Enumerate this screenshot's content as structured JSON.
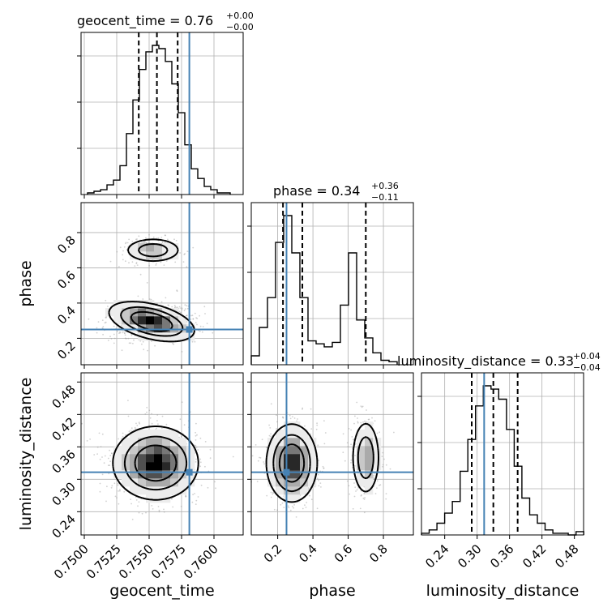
{
  "chart_data": {
    "type": "corner",
    "parameters": [
      "geocent_time",
      "phase",
      "luminosity_distance"
    ],
    "truths": {
      "geocent_time": 0.7581,
      "phase": 0.25,
      "luminosity_distance": 0.313
    },
    "truth_color": "#4682b4",
    "titles": [
      {
        "param": "geocent_time",
        "text": "geocent_time = 0.76",
        "sup": "+0.00",
        "sub": "−0.00"
      },
      {
        "param": "phase",
        "text": "phase = 0.34",
        "sup": "+0.36",
        "sub": "−0.11"
      },
      {
        "param": "luminosity_distance",
        "text": "luminosity_distance = 0.33",
        "sup": "+0.04",
        "sub": "−0.04"
      }
    ],
    "ranges": {
      "geocent_time": [
        0.74975,
        0.76225
      ],
      "phase": [
        0.05,
        0.97
      ],
      "luminosity_distance": [
        0.197,
        0.497
      ]
    },
    "ticks": {
      "geocent_time": [
        "0.7500",
        "0.7525",
        "0.7550",
        "0.7575",
        "0.7600"
      ],
      "phase": [
        "0.2",
        "0.4",
        "0.6",
        "0.8"
      ],
      "luminosity_distance": [
        "0.24",
        "0.30",
        "0.36",
        "0.42",
        "0.48"
      ]
    },
    "quantiles": {
      "geocent_time": [
        0.7542,
        0.7556,
        0.7572
      ],
      "phase": [
        0.23,
        0.34,
        0.7
      ],
      "luminosity_distance": [
        0.29,
        0.33,
        0.375
      ]
    },
    "histograms": {
      "geocent_time": {
        "start": 0.75025,
        "step": 0.0005,
        "counts": [
          1,
          2,
          3,
          6,
          9,
          18,
          38,
          59,
          78,
          89,
          93,
          91,
          83,
          69,
          51,
          31,
          16,
          10,
          5,
          3,
          1,
          1
        ]
      },
      "phase": {
        "start": 0.05,
        "step": 0.046,
        "counts": [
          6,
          25,
          45,
          82,
          100,
          75,
          45,
          16,
          14,
          12,
          15,
          40,
          75,
          30,
          18,
          8,
          3,
          2
        ]
      },
      "luminosity_distance": {
        "start": 0.197,
        "step": 0.0143,
        "counts": [
          1,
          3,
          7,
          13,
          20,
          38,
          57,
          77,
          89,
          87,
          81,
          63,
          41,
          22,
          12,
          7,
          3,
          1,
          1,
          0,
          2
        ]
      }
    },
    "densities": {
      "phase_vs_geocent_time": {
        "peaks": [
          {
            "x": 0.7553,
            "y": 0.7,
            "sx": 0.0011,
            "sy": 0.035,
            "w": 0.55,
            "rho": 0.0
          },
          {
            "x": 0.7552,
            "y": 0.295,
            "sx": 0.0016,
            "sy": 0.055,
            "w": 1.0,
            "rho": -0.45
          }
        ]
      },
      "luminosity_distance_vs_geocent_time": {
        "peaks": [
          {
            "x": 0.7555,
            "y": 0.33,
            "sx": 0.0016,
            "sy": 0.033,
            "w": 1.0,
            "rho": 0.0
          }
        ]
      },
      "luminosity_distance_vs_phase": {
        "peaks": [
          {
            "x": 0.28,
            "y": 0.33,
            "sx": 0.07,
            "sy": 0.035,
            "w": 1.0,
            "rho": 0.0
          },
          {
            "x": 0.7,
            "y": 0.34,
            "sx": 0.04,
            "sy": 0.035,
            "w": 0.6,
            "rho": 0.0
          }
        ]
      }
    },
    "contour_levels": [
      0.12,
      0.33,
      0.61
    ]
  }
}
